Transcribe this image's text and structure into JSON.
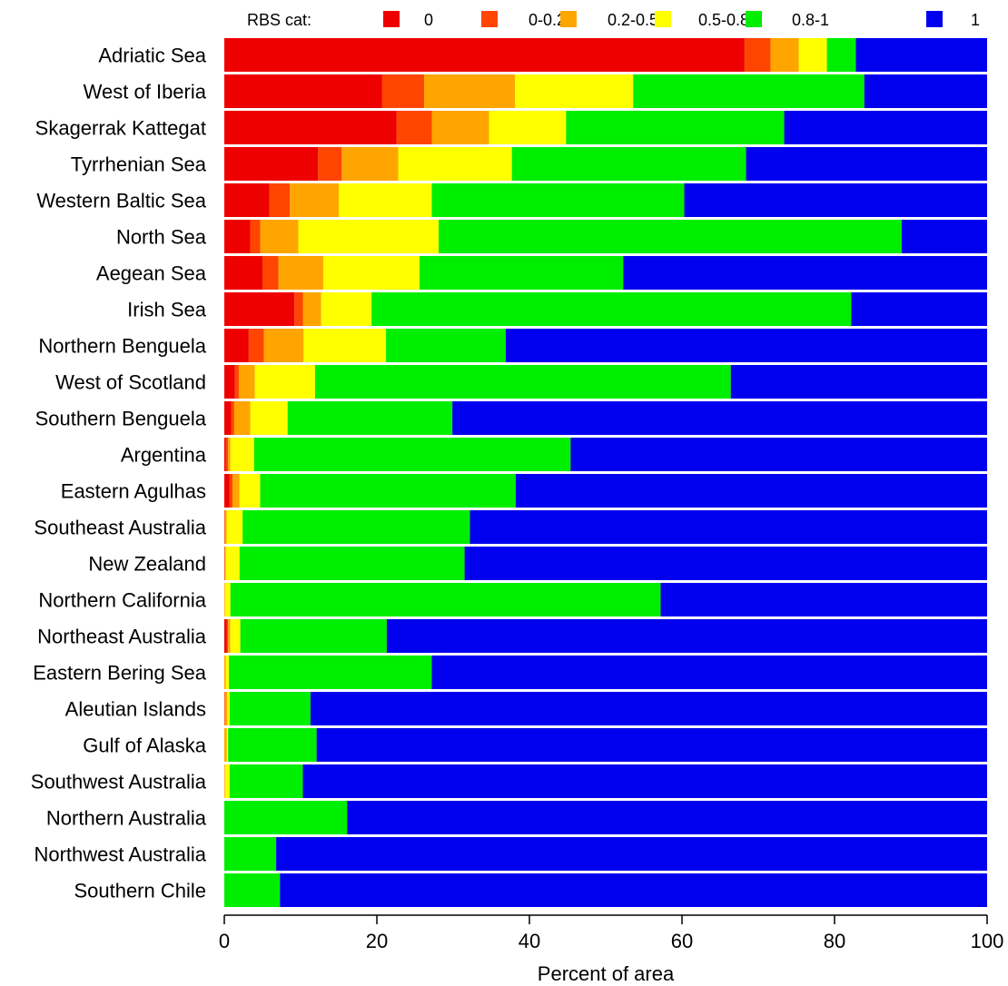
{
  "chart_data": {
    "type": "bar",
    "orientation": "horizontal",
    "stacked": true,
    "title": "",
    "xlabel": "Percent of area",
    "ylabel": "",
    "xlim": [
      0,
      100
    ],
    "xticks": [
      "0",
      "20",
      "40",
      "60",
      "80",
      "100"
    ],
    "legend": {
      "title": "RBS cat:",
      "position": "top",
      "entries": [
        {
          "label": "0",
          "color": "#ee0000"
        },
        {
          "label": "0-0.2",
          "color": "#ff4500"
        },
        {
          "label": "0.2-0.5",
          "color": "#ffa500"
        },
        {
          "label": "0.5-0.8",
          "color": "#ffff00"
        },
        {
          "label": "0.8-1",
          "color": "#00ee00"
        },
        {
          "label": "1",
          "color": "#0000ee"
        }
      ]
    },
    "categories": [
      "Adriatic Sea",
      "West of Iberia",
      "Skagerrak Kattegat",
      "Tyrrhenian Sea",
      "Western Baltic Sea",
      "North Sea",
      "Aegean Sea",
      "Irish Sea",
      "Northern Benguela",
      "West of Scotland",
      "Southern Benguela",
      "Argentina",
      "Eastern Agulhas",
      "Southeast Australia",
      "New Zealand",
      "Northern California",
      "Northeast Australia",
      "Eastern Bering Sea",
      "Aleutian Islands",
      "Gulf of Alaska",
      "Southwest Australia",
      "Northern Australia",
      "Northwest Australia",
      "Southern Chile"
    ],
    "series": [
      {
        "name": "0",
        "color": "#ee0000",
        "values": [
          68.2,
          20.7,
          22.6,
          12.3,
          5.9,
          3.4,
          5.0,
          9.2,
          3.2,
          1.4,
          0.9,
          0.2,
          0.7,
          0.0,
          0.0,
          0.0,
          0.3,
          0.0,
          0.0,
          0.0,
          0.0,
          0.0,
          0.0,
          0.0
        ]
      },
      {
        "name": "0-0.2",
        "color": "#ff4500",
        "values": [
          3.4,
          5.5,
          4.6,
          3.1,
          2.7,
          1.3,
          2.1,
          1.1,
          2.0,
          0.5,
          0.4,
          0.3,
          0.4,
          0.1,
          0.1,
          0.0,
          0.2,
          0.0,
          0.1,
          0.0,
          0.0,
          0.0,
          0.0,
          0.0
        ]
      },
      {
        "name": "0.2-0.5",
        "color": "#ffa500",
        "values": [
          3.7,
          11.9,
          7.5,
          7.4,
          6.4,
          5.0,
          5.9,
          2.4,
          5.2,
          2.1,
          2.1,
          0.3,
          0.9,
          0.2,
          0.1,
          0.1,
          0.3,
          0.2,
          0.3,
          0.3,
          0.1,
          0.0,
          0.0,
          0.0
        ]
      },
      {
        "name": "0.5-0.8",
        "color": "#ffff00",
        "values": [
          3.7,
          15.5,
          10.1,
          14.9,
          12.2,
          18.4,
          12.6,
          6.6,
          10.8,
          7.9,
          4.9,
          3.1,
          2.7,
          2.1,
          1.8,
          0.7,
          1.3,
          0.4,
          0.3,
          0.2,
          0.6,
          0.0,
          0.0,
          0.0
        ]
      },
      {
        "name": "0.8-1",
        "color": "#00ee00",
        "values": [
          3.8,
          30.3,
          28.6,
          30.7,
          33.1,
          60.7,
          26.7,
          62.9,
          15.7,
          54.5,
          21.6,
          41.5,
          33.5,
          29.8,
          29.5,
          56.4,
          19.2,
          26.6,
          10.6,
          11.6,
          9.6,
          16.1,
          6.8,
          7.3
        ]
      },
      {
        "name": "1",
        "color": "#0000ee",
        "values": [
          17.2,
          16.1,
          26.6,
          31.6,
          39.7,
          11.2,
          47.7,
          17.8,
          63.1,
          33.6,
          70.1,
          54.6,
          61.8,
          67.8,
          68.5,
          42.8,
          78.7,
          72.8,
          88.7,
          87.9,
          89.7,
          83.9,
          93.2,
          92.7
        ]
      }
    ]
  }
}
